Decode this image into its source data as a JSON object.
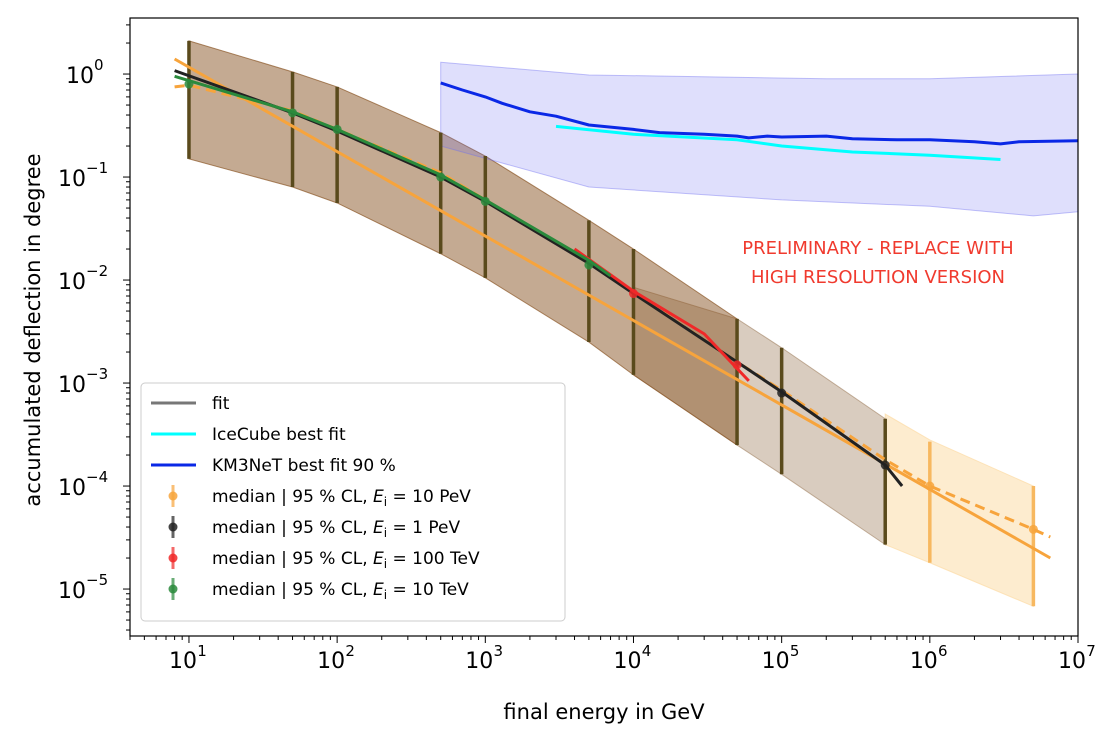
{
  "chart_data": {
    "type": "line",
    "xlabel": "final energy in GeV",
    "ylabel": "accumulated deflection in degree",
    "xscale": "log",
    "yscale": "log",
    "xlim": [
      4,
      10000000
    ],
    "ylim": [
      3.5e-06,
      3.5
    ],
    "grid": false,
    "legend_position": "lower-left",
    "x_ticks": [
      {
        "base": "10",
        "exp": "1",
        "value": 10
      },
      {
        "base": "10",
        "exp": "2",
        "value": 100
      },
      {
        "base": "10",
        "exp": "3",
        "value": 1000
      },
      {
        "base": "10",
        "exp": "4",
        "value": 10000
      },
      {
        "base": "10",
        "exp": "5",
        "value": 100000
      },
      {
        "base": "10",
        "exp": "6",
        "value": 1000000
      },
      {
        "base": "10",
        "exp": "7",
        "value": 10000000
      }
    ],
    "y_ticks": [
      {
        "base": "10",
        "exp": "0",
        "value": 1
      },
      {
        "base": "10",
        "exp": "−1",
        "value": 0.1
      },
      {
        "base": "10",
        "exp": "−2",
        "value": 0.01
      },
      {
        "base": "10",
        "exp": "−3",
        "value": 0.001
      },
      {
        "base": "10",
        "exp": "−4",
        "value": 0.0001
      },
      {
        "base": "10",
        "exp": "−5",
        "value": 1e-05
      }
    ],
    "annotation": [
      "PRELIMINARY - REPLACE WITH",
      "HIGH RESOLUTION VERSION"
    ],
    "colors": {
      "e10pev": "#f7a43c",
      "e1pev": "#222222",
      "e100tev": "#f02828",
      "e10tev": "#2a8a3c",
      "icecube": "#00ffff",
      "km3net": "#0a28e6",
      "km3net_band": "#6e6ef0",
      "band_main": "#8a5525",
      "band_1pev": "#a08060",
      "band_10pev": "#fcdca8",
      "errbar": "#5a4a1c",
      "fit_gray": "#777777"
    },
    "legend": [
      {
        "label": "fit",
        "kind": "line",
        "color": "#777777"
      },
      {
        "label": "IceCube best fit",
        "kind": "line",
        "color": "#00ffff"
      },
      {
        "label": "KM3NeT best fit 90 %",
        "kind": "line",
        "color": "#0a28e6"
      },
      {
        "label_prefix": "median | 95 % CL, ",
        "label_var": "E",
        "label_sub": "i",
        "label_value": " = 10 PeV",
        "kind": "errorbar",
        "color": "#f7a43c"
      },
      {
        "label_prefix": "median | 95 % CL, ",
        "label_var": "E",
        "label_sub": "i",
        "label_value": " = 1 PeV",
        "kind": "errorbar",
        "color": "#222222"
      },
      {
        "label_prefix": "median | 95 % CL, ",
        "label_var": "E",
        "label_sub": "i",
        "label_value": " = 100 TeV",
        "kind": "errorbar",
        "color": "#f02828"
      },
      {
        "label_prefix": "median | 95 % CL, ",
        "label_var": "E",
        "label_sub": "i",
        "label_value": " = 10 TeV",
        "kind": "errorbar",
        "color": "#2a8a3c"
      }
    ],
    "bands": [
      {
        "name": "band-10pev",
        "color": "#fcdca8",
        "opacity": 0.55,
        "upper": [
          [
            500000,
            0.0005
          ],
          [
            1000000,
            0.00028
          ],
          [
            5000000,
            0.0001
          ]
        ],
        "lower": [
          [
            500000,
            2.7e-05
          ],
          [
            1000000,
            1.8e-05
          ],
          [
            5000000,
            6.8e-06
          ]
        ]
      },
      {
        "name": "band-1pev",
        "color": "#a08060",
        "opacity": 0.4,
        "upper": [
          [
            10000,
            0.0085
          ],
          [
            50000,
            0.0042
          ],
          [
            100000,
            0.0022
          ],
          [
            500000,
            0.00045
          ]
        ],
        "lower": [
          [
            10000,
            0.0012
          ],
          [
            50000,
            0.00025
          ],
          [
            100000,
            0.00013
          ],
          [
            500000,
            2.7e-05
          ]
        ]
      },
      {
        "name": "band-main",
        "color": "#8a5525",
        "opacity": 0.5,
        "upper": [
          [
            10,
            2.1
          ],
          [
            50,
            1.05
          ],
          [
            100,
            0.75
          ],
          [
            500,
            0.27
          ],
          [
            1000,
            0.16
          ],
          [
            5000,
            0.038
          ],
          [
            10000,
            0.02
          ],
          [
            50000,
            0.0042
          ]
        ],
        "lower": [
          [
            10,
            0.15
          ],
          [
            50,
            0.08
          ],
          [
            100,
            0.056
          ],
          [
            500,
            0.018
          ],
          [
            1000,
            0.0105
          ],
          [
            5000,
            0.0025
          ],
          [
            10000,
            0.0012
          ],
          [
            50000,
            0.00025
          ]
        ]
      },
      {
        "name": "band-km3net",
        "color": "#6e6ef0",
        "opacity": 0.22,
        "upper": [
          [
            500,
            1.3
          ],
          [
            5000,
            0.98
          ],
          [
            200000,
            0.9
          ],
          [
            1000000,
            0.9
          ],
          [
            10000000,
            1.0
          ]
        ],
        "lower": [
          [
            500,
            0.2
          ],
          [
            5000,
            0.08
          ],
          [
            100000,
            0.06
          ],
          [
            1000000,
            0.052
          ],
          [
            5000000,
            0.042
          ],
          [
            10000000,
            0.046
          ]
        ]
      }
    ],
    "errorbars": [
      {
        "series": "E_i = 10 TeV",
        "color": "#2a8a3c",
        "bar_color": "#5a4a1c",
        "points": [
          {
            "x": 10,
            "y": 0.8,
            "lo": 0.15,
            "hi": 2.1
          },
          {
            "x": 50,
            "y": 0.42,
            "lo": 0.08,
            "hi": 1.05
          },
          {
            "x": 100,
            "y": 0.29,
            "lo": 0.056,
            "hi": 0.75
          },
          {
            "x": 500,
            "y": 0.1,
            "lo": 0.018,
            "hi": 0.27
          },
          {
            "x": 1000,
            "y": 0.058,
            "lo": 0.0105,
            "hi": 0.16
          },
          {
            "x": 5000,
            "y": 0.014,
            "lo": 0.0025,
            "hi": 0.038
          }
        ]
      },
      {
        "series": "E_i = 100 TeV",
        "color": "#f02828",
        "bar_color": "#5a4a1c",
        "points": [
          {
            "x": 10000,
            "y": 0.0074,
            "lo": 0.0012,
            "hi": 0.02
          },
          {
            "x": 50000,
            "y": 0.0015,
            "lo": 0.00025,
            "hi": 0.0042
          }
        ]
      },
      {
        "series": "E_i = 1 PeV",
        "color": "#222222",
        "bar_color": "#5a4a1c",
        "points": [
          {
            "x": 100000,
            "y": 0.0008,
            "lo": 0.00013,
            "hi": 0.0022
          },
          {
            "x": 500000,
            "y": 0.00016,
            "lo": 2.7e-05,
            "hi": 0.00045
          }
        ]
      },
      {
        "series": "E_i = 10 PeV",
        "color": "#f7a43c",
        "bar_color": "#f7b860",
        "points": [
          {
            "x": 1000000,
            "y": 0.0001,
            "lo": 1.8e-05,
            "hi": 0.00027
          },
          {
            "x": 5000000,
            "y": 3.8e-05,
            "lo": 6.8e-06,
            "hi": 0.0001
          }
        ]
      }
    ],
    "lines": [
      {
        "name": "km3net-best-fit",
        "color": "#0a28e6",
        "width": 3,
        "dash": "",
        "points": [
          [
            500,
            0.82
          ],
          [
            700,
            0.7
          ],
          [
            1000,
            0.6
          ],
          [
            1300,
            0.52
          ],
          [
            2000,
            0.43
          ],
          [
            3000,
            0.39
          ],
          [
            5000,
            0.32
          ],
          [
            10000,
            0.29
          ],
          [
            15000,
            0.27
          ],
          [
            30000,
            0.26
          ],
          [
            50000,
            0.25
          ],
          [
            60000,
            0.24
          ],
          [
            80000,
            0.25
          ],
          [
            100000,
            0.245
          ],
          [
            200000,
            0.25
          ],
          [
            300000,
            0.235
          ],
          [
            600000,
            0.23
          ],
          [
            1000000,
            0.23
          ],
          [
            2000000,
            0.22
          ],
          [
            3000000,
            0.21
          ],
          [
            4000000,
            0.22
          ],
          [
            10000000,
            0.225
          ]
        ]
      },
      {
        "name": "icecube-best-fit",
        "color": "#00ffff",
        "width": 3,
        "dash": "",
        "points": [
          [
            3000,
            0.31
          ],
          [
            10000,
            0.26
          ],
          [
            50000,
            0.23
          ],
          [
            100000,
            0.2
          ],
          [
            300000,
            0.175
          ],
          [
            1000000,
            0.163
          ],
          [
            3000000,
            0.148
          ]
        ]
      },
      {
        "name": "fit-10pev-solid",
        "color": "#f7a43c",
        "width": 3,
        "dash": "",
        "points": [
          [
            8,
            1.4
          ],
          [
            6500000,
            2e-05
          ]
        ]
      },
      {
        "name": "fit-10pev-dashed",
        "color": "#f7a43c",
        "width": 3,
        "dash": "10,6",
        "points": [
          [
            8,
            0.75
          ],
          [
            10,
            0.78
          ],
          [
            50,
            0.44
          ],
          [
            100,
            0.29
          ],
          [
            500,
            0.11
          ],
          [
            1000,
            0.06
          ],
          [
            5000,
            0.015
          ],
          [
            10000,
            0.0075
          ],
          [
            50000,
            0.0016
          ],
          [
            100000,
            0.00085
          ],
          [
            500000,
            0.00018
          ],
          [
            1000000,
            0.0001
          ],
          [
            5000000,
            3.8e-05
          ],
          [
            6500000,
            3.2e-05
          ]
        ]
      },
      {
        "name": "fit-1pev",
        "color": "#222222",
        "width": 3,
        "dash": "",
        "points": [
          [
            8,
            1.08
          ],
          [
            50,
            0.42
          ],
          [
            100,
            0.28
          ],
          [
            500,
            0.1
          ],
          [
            1000,
            0.058
          ],
          [
            5000,
            0.0145
          ],
          [
            10000,
            0.0074
          ],
          [
            50000,
            0.0016
          ],
          [
            100000,
            0.00082
          ],
          [
            500000,
            0.00016
          ],
          [
            650000,
            0.0001
          ]
        ]
      },
      {
        "name": "fit-100tev",
        "color": "#f02828",
        "width": 3,
        "dash": "",
        "points": [
          [
            4000,
            0.02
          ],
          [
            10000,
            0.0078
          ],
          [
            30000,
            0.003
          ],
          [
            60000,
            0.00105
          ]
        ]
      },
      {
        "name": "fit-10tev",
        "color": "#2a8a3c",
        "width": 3,
        "dash": "",
        "points": [
          [
            8,
            0.95
          ],
          [
            50,
            0.43
          ],
          [
            100,
            0.29
          ],
          [
            500,
            0.105
          ],
          [
            1000,
            0.06
          ],
          [
            5000,
            0.0155
          ],
          [
            7000,
            0.011
          ]
        ]
      }
    ]
  }
}
